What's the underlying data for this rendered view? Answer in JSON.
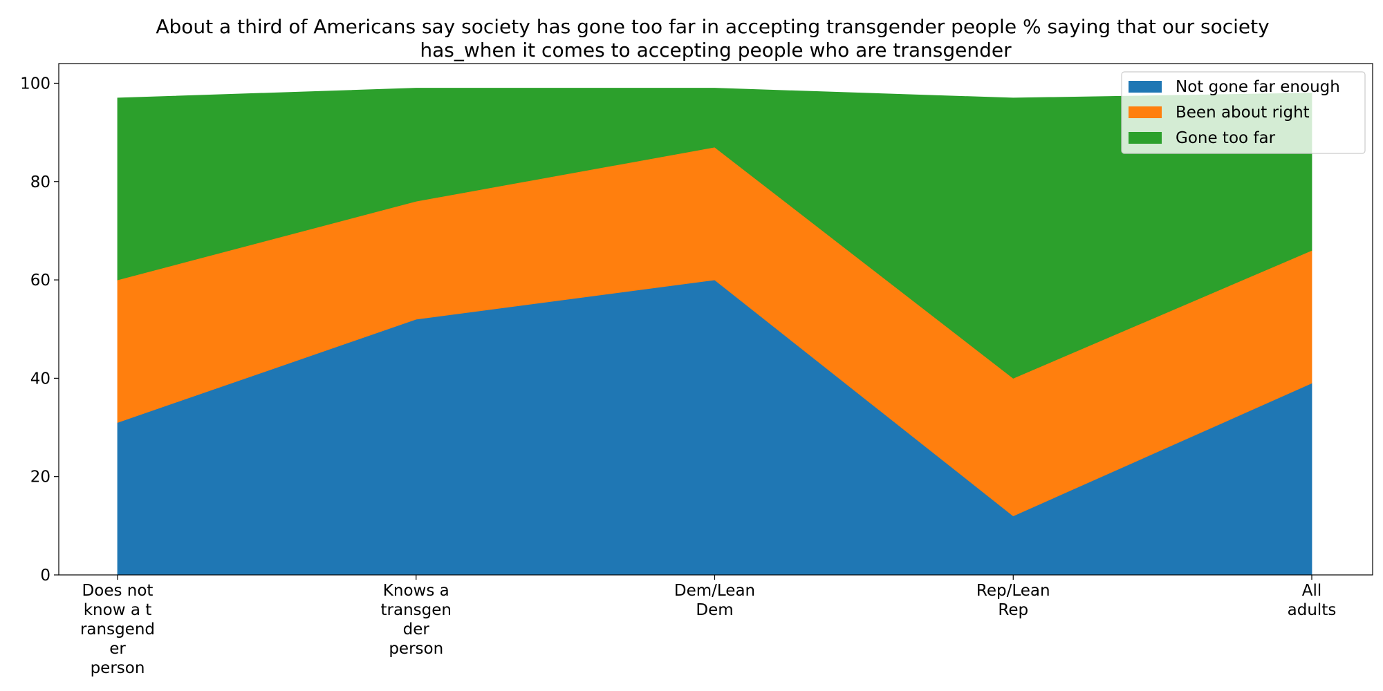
{
  "chart_data": {
    "type": "area",
    "stacked": true,
    "title": "About a third of Americans say society has gone too far in accepting transgender people % saying that our society has_when it comes to accepting people who are transgender",
    "title_lines": [
      "About a third of Americans say society has gone too far in accepting transgender people % saying that our society",
      "has_when it comes to accepting people who are transgender"
    ],
    "xlabel": "",
    "ylabel": "",
    "categories": [
      "Does not know a transgender person",
      "Knows a transgender person",
      "Dem/Lean Dem",
      "Rep/Lean Rep",
      "All adults"
    ],
    "category_label_lines": [
      [
        "Does not",
        "know a t",
        "ransgend",
        "er",
        "person"
      ],
      [
        "Knows a",
        "transgen",
        "der",
        "person"
      ],
      [
        "Dem/Lean",
        "Dem"
      ],
      [
        "Rep/Lean",
        "Rep"
      ],
      [
        "All",
        "adults"
      ]
    ],
    "series": [
      {
        "name": "Not gone far enough",
        "color": "#1f77b4",
        "values": [
          31,
          52,
          60,
          12,
          39
        ]
      },
      {
        "name": "Been about right",
        "color": "#ff7f0e",
        "values": [
          29,
          24,
          27,
          28,
          27
        ]
      },
      {
        "name": "Gone too far",
        "color": "#2ca02c",
        "values": [
          37,
          23,
          12,
          57,
          32
        ]
      }
    ],
    "ylim": [
      0,
      104
    ],
    "yticks": [
      0,
      20,
      40,
      60,
      80,
      100
    ],
    "grid": false,
    "legend_position": "top-right"
  }
}
